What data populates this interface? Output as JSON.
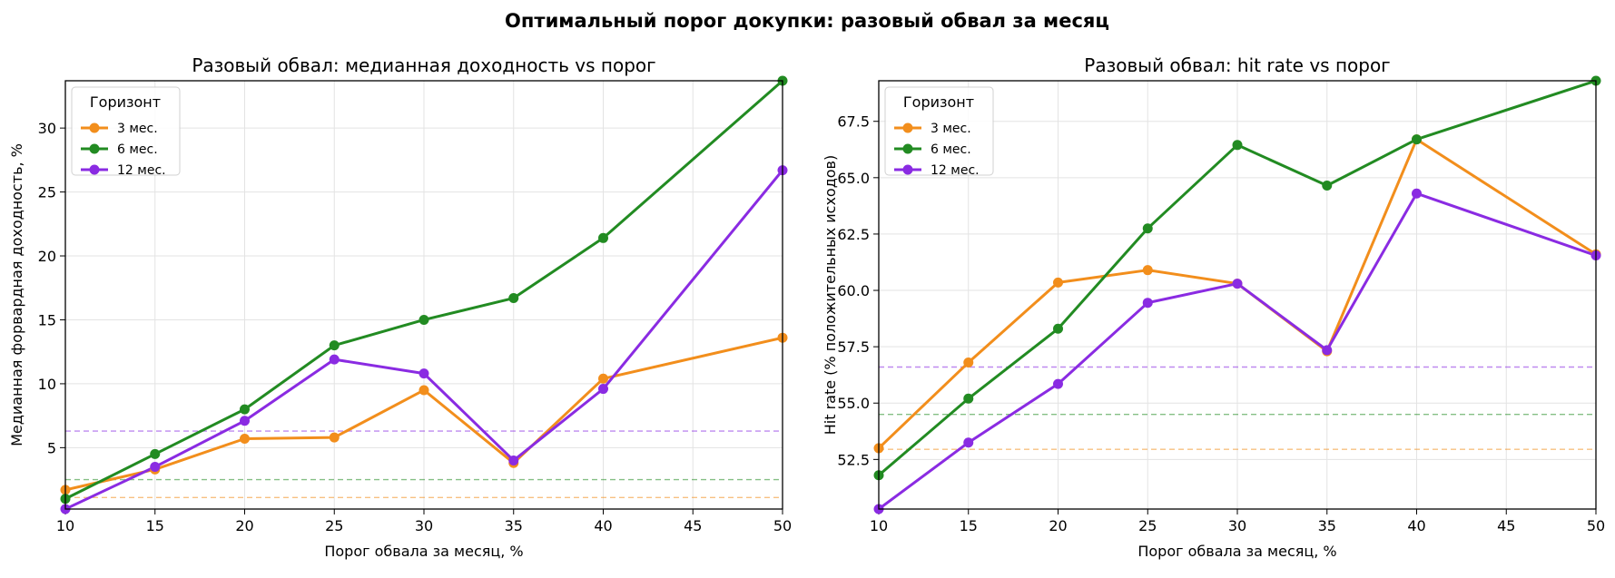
{
  "suptitle": "Оптимальный порог докупки: разовый обвал за месяц",
  "legend_title": "Горизонт",
  "chart_data": [
    {
      "type": "line",
      "title": "Разовый обвал: медианная доходность vs порог",
      "xlabel": "Порог обвала за месяц, %",
      "ylabel": "Медианная форвардная доходность, %",
      "xlim": [
        10,
        50
      ],
      "ylim": [
        0.2,
        33.7
      ],
      "xticks": [
        "10",
        "15",
        "20",
        "25",
        "30",
        "35",
        "40",
        "45",
        "50"
      ],
      "yticks": [
        "5",
        "10",
        "15",
        "20",
        "25",
        "30"
      ],
      "grid": true,
      "legend_position": "top-left",
      "series": [
        {
          "name": "3 мес.",
          "color": "#f28e1c",
          "x": [
            10,
            15,
            20,
            25,
            30,
            35,
            40,
            50
          ],
          "y": [
            1.7,
            3.3,
            5.7,
            5.8,
            9.5,
            3.8,
            10.4,
            13.6
          ],
          "baseline": 1.1
        },
        {
          "name": "6 мес.",
          "color": "#228b22",
          "x": [
            10,
            15,
            20,
            25,
            30,
            35,
            40,
            50
          ],
          "y": [
            1.0,
            4.5,
            8.0,
            13.0,
            15.0,
            16.7,
            21.4,
            33.7
          ],
          "baseline": 2.5
        },
        {
          "name": "12 мес.",
          "color": "#8a2be2",
          "x": [
            10,
            15,
            20,
            25,
            30,
            35,
            40,
            50
          ],
          "y": [
            0.2,
            3.5,
            7.1,
            11.9,
            10.8,
            4.0,
            9.6,
            26.7
          ],
          "baseline": 6.3
        }
      ]
    },
    {
      "type": "line",
      "title": "Разовый обвал: hit rate vs порог",
      "xlabel": "Порог обвала за месяц, %",
      "ylabel": "Hit rate (% положительных исходов)",
      "xlim": [
        10,
        50
      ],
      "ylim": [
        50.3,
        69.3
      ],
      "xticks": [
        "10",
        "15",
        "20",
        "25",
        "30",
        "35",
        "40",
        "45",
        "50"
      ],
      "yticks": [
        "52.5",
        "55.0",
        "57.5",
        "60.0",
        "62.5",
        "65.0",
        "67.5"
      ],
      "grid": true,
      "legend_position": "top-left",
      "series": [
        {
          "name": "3 мес.",
          "color": "#f28e1c",
          "x": [
            10,
            15,
            20,
            25,
            30,
            35,
            40,
            50
          ],
          "y": [
            53.0,
            56.8,
            60.35,
            60.9,
            60.3,
            57.3,
            66.7,
            61.6
          ],
          "baseline": 52.95
        },
        {
          "name": "6 мес.",
          "color": "#228b22",
          "x": [
            10,
            15,
            20,
            25,
            30,
            35,
            40,
            50
          ],
          "y": [
            51.8,
            55.2,
            58.3,
            62.75,
            66.45,
            64.65,
            66.7,
            69.3
          ],
          "baseline": 54.5
        },
        {
          "name": "12 мес.",
          "color": "#8a2be2",
          "x": [
            10,
            15,
            20,
            25,
            30,
            35,
            40,
            50
          ],
          "y": [
            50.3,
            53.25,
            55.85,
            59.45,
            60.3,
            57.35,
            64.3,
            61.55
          ],
          "baseline": 56.6
        }
      ]
    }
  ]
}
